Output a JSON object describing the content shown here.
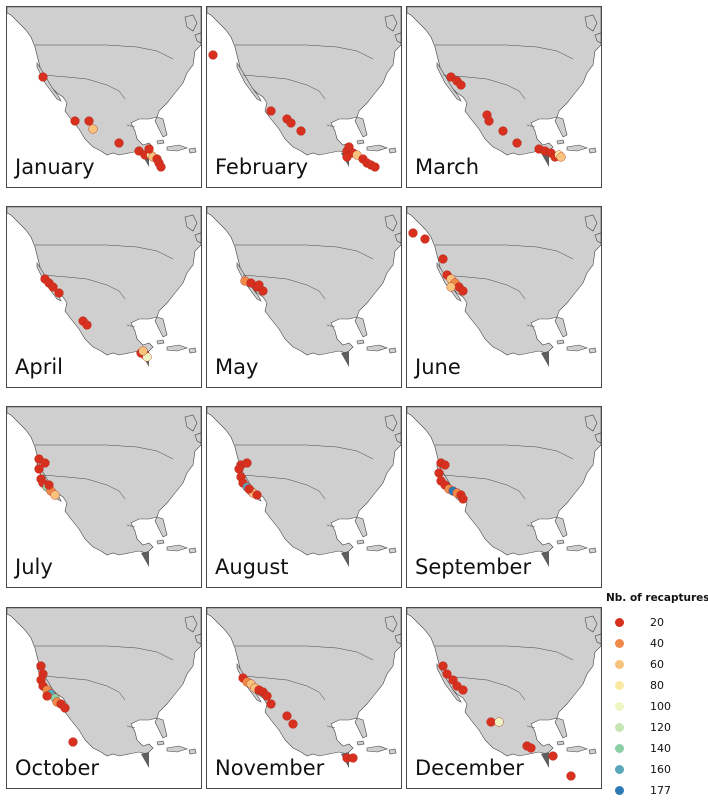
{
  "legend": {
    "title": "Nb. of recaptures",
    "items": [
      {
        "label": "20",
        "color": "#d7301f"
      },
      {
        "label": "40",
        "color": "#f08a4b"
      },
      {
        "label": "60",
        "color": "#f7c27c"
      },
      {
        "label": "80",
        "color": "#fbe9a4"
      },
      {
        "label": "100",
        "color": "#eef5c2"
      },
      {
        "label": "120",
        "color": "#c5e6b4"
      },
      {
        "label": "140",
        "color": "#8ccfa5"
      },
      {
        "label": "160",
        "color": "#5aa7b9"
      },
      {
        "label": "177",
        "color": "#2c7bb6"
      }
    ]
  },
  "colors": {
    "land": "#cfcfcf",
    "border": "#444444",
    "tropical_marker": "#5f5f5f"
  },
  "months": [
    {
      "name": "January"
    },
    {
      "name": "February"
    },
    {
      "name": "March"
    },
    {
      "name": "April"
    },
    {
      "name": "May"
    },
    {
      "name": "June"
    },
    {
      "name": "July"
    },
    {
      "name": "August"
    },
    {
      "name": "September"
    },
    {
      "name": "October"
    },
    {
      "name": "November"
    },
    {
      "name": "December"
    }
  ]
}
